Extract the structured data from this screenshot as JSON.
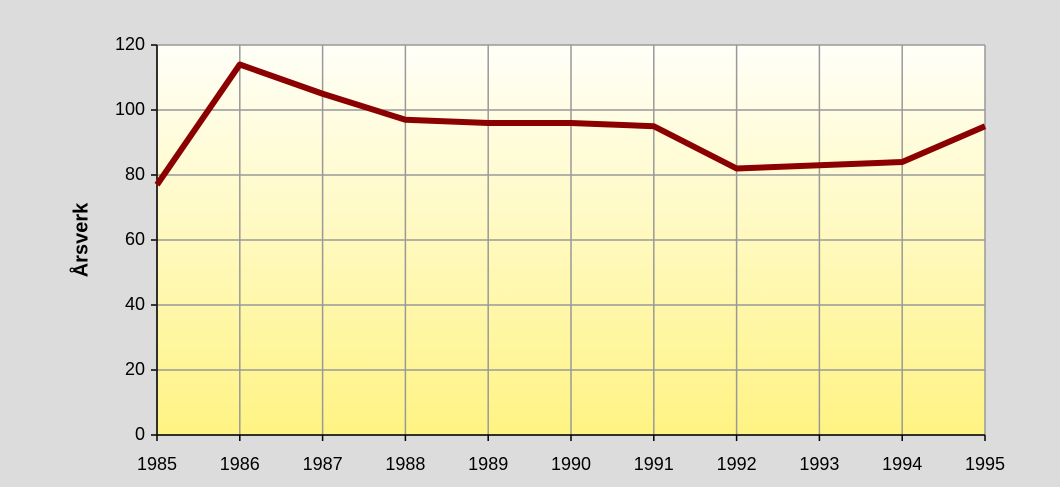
{
  "chart_data": {
    "type": "line",
    "ylabel": "Årsverk",
    "x": [
      1985,
      1986,
      1987,
      1988,
      1989,
      1990,
      1991,
      1992,
      1993,
      1994,
      1995
    ],
    "series": [
      {
        "name": "Årsverk",
        "color": "#8b0000",
        "values": [
          77,
          114,
          105,
          97,
          96,
          96,
          95,
          82,
          83,
          84,
          95
        ]
      }
    ],
    "xlim": [
      1985,
      1995
    ],
    "xticks": [
      1985,
      1986,
      1987,
      1988,
      1989,
      1990,
      1991,
      1992,
      1993,
      1994,
      1995
    ],
    "ylim": [
      0,
      120
    ],
    "yticks": [
      0,
      20,
      40,
      60,
      80,
      100,
      120
    ],
    "grid": true
  }
}
